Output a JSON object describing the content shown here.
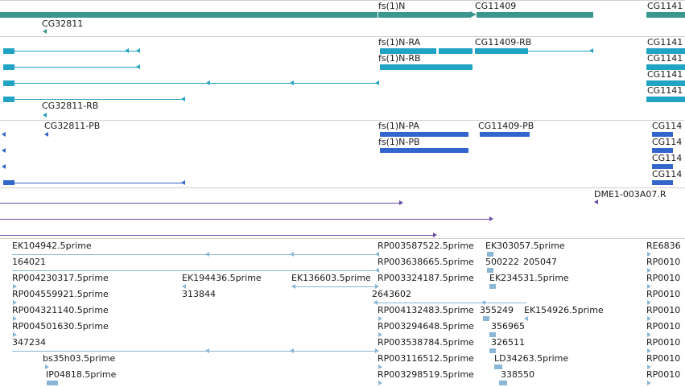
{
  "colors": {
    "gene": "#3a968e",
    "mrna": "#21a4c3",
    "cds": "#3366cc",
    "mapping": "#6a4ca3",
    "est": "#8ab6d6",
    "separator": "#cfcfcf"
  },
  "gene_track": {
    "labels": [
      "CG32811",
      "fs(1)N",
      "CG11409",
      "CG1141"
    ]
  },
  "mrna_track": {
    "labels": [
      "fs(1)N-RA",
      "fs(1)N-RB",
      "CG11409-RB",
      "CG32811-RB",
      "CG1141",
      "CG1141",
      "CG1141",
      "CG1141"
    ]
  },
  "cds_track": {
    "labels": [
      "CG32811-PB",
      "fs(1)N-PA",
      "fs(1)N-PB",
      "CG11409-PB",
      "CG114",
      "CG114",
      "CG114",
      "CG114"
    ]
  },
  "mapping_track": {
    "labels": [
      "DME1-003A07.R"
    ]
  },
  "est_track": {
    "rows": [
      [
        "EK104942.5prime",
        "RP003587522.5prime",
        "EK303057.5prime",
        "RE6836"
      ],
      [
        "164021",
        "RP003638665.5prime",
        "500222",
        "205047",
        "RP0010"
      ],
      [
        "RP004230317.5prime",
        "EK194436.5prime",
        "EK136603.5prime",
        "RP003324187.5prime",
        "EK234531.5prime",
        "RP0010"
      ],
      [
        "RP004559921.5prime",
        "313844",
        "2643602",
        "RP0010"
      ],
      [
        "RP004321140.5prime",
        "RP004132483.5prime",
        "355249",
        "EK154926.5prime",
        "RP0010"
      ],
      [
        "RP004501630.5prime",
        "RP003294648.5prime",
        "356965",
        "RP0010"
      ],
      [
        "347234",
        "RP003538784.5prime",
        "326511",
        "RP0010"
      ],
      [
        "bs35h03.5prime",
        "RP003116512.5prime",
        "LD34263.5prime",
        "RP0010"
      ],
      [
        "IP04818.5prime",
        "RP003298519.5prime",
        "338550",
        "RP0010"
      ]
    ]
  }
}
